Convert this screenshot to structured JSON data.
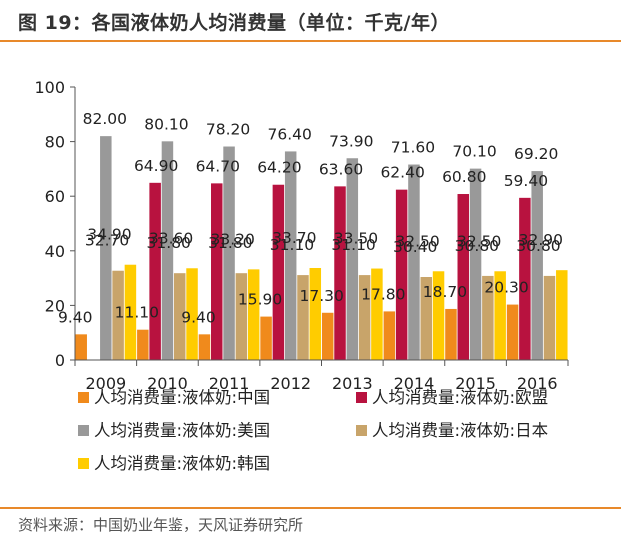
{
  "header": {
    "title": "图 19：各国液体奶人均消费量（单位：千克/年）"
  },
  "footer": {
    "source": "资料来源：中国奶业年鉴，天风证券研究所"
  },
  "chart_data": {
    "type": "bar",
    "title": "图 19：各国液体奶人均消费量（单位：千克/年）",
    "xlabel": "",
    "ylabel": "",
    "ylim": [
      0,
      100
    ],
    "yticks": [
      "0",
      "20",
      "40",
      "60",
      "80",
      "100"
    ],
    "categories": [
      "2009",
      "2010",
      "2011",
      "2012",
      "2013",
      "2014",
      "2015",
      "2016"
    ],
    "legend_position": "bottom",
    "series": [
      {
        "name": "人均消费量:液体奶:中国",
        "color": "#f08a1c",
        "values": [
          9.4,
          11.1,
          9.4,
          15.9,
          17.3,
          17.8,
          18.7,
          20.3
        ],
        "labels": [
          "9.40",
          "11.10",
          "9.40",
          "15.90",
          "17.30",
          "17.80",
          "18.70",
          "20.30"
        ]
      },
      {
        "name": "人均消费量:液体奶:欧盟",
        "color": "#b8123f",
        "values": [
          0,
          64.9,
          64.7,
          64.2,
          63.6,
          62.4,
          60.8,
          59.4
        ],
        "labels": [
          "",
          "64.90",
          "64.70",
          "64.20",
          "63.60",
          "62.40",
          "60.80",
          "59.40"
        ]
      },
      {
        "name": "人均消费量:液体奶:美国",
        "color": "#999999",
        "values": [
          82.0,
          80.1,
          78.2,
          76.4,
          73.9,
          71.6,
          70.1,
          69.2
        ],
        "labels": [
          "82.00",
          "80.10",
          "78.20",
          "76.40",
          "73.90",
          "71.60",
          "70.10",
          "69.20"
        ]
      },
      {
        "name": "人均消费量:液体奶:日本",
        "color": "#c8a46a",
        "values": [
          32.7,
          31.8,
          31.8,
          31.1,
          31.1,
          30.4,
          30.8,
          30.8
        ],
        "labels": [
          "32.70",
          "31.80",
          "31.80",
          "31.10",
          "31.10",
          "30.40",
          "30.80",
          "30.80"
        ]
      },
      {
        "name": "人均消费量:液体奶:韩国",
        "color": "#ffcc00",
        "values": [
          34.9,
          33.6,
          33.2,
          33.7,
          33.5,
          32.5,
          32.5,
          32.9
        ],
        "labels": [
          "34.90",
          "33.60",
          "33.20",
          "33.70",
          "33.50",
          "32.50",
          "32.50",
          "32.90"
        ]
      }
    ]
  }
}
